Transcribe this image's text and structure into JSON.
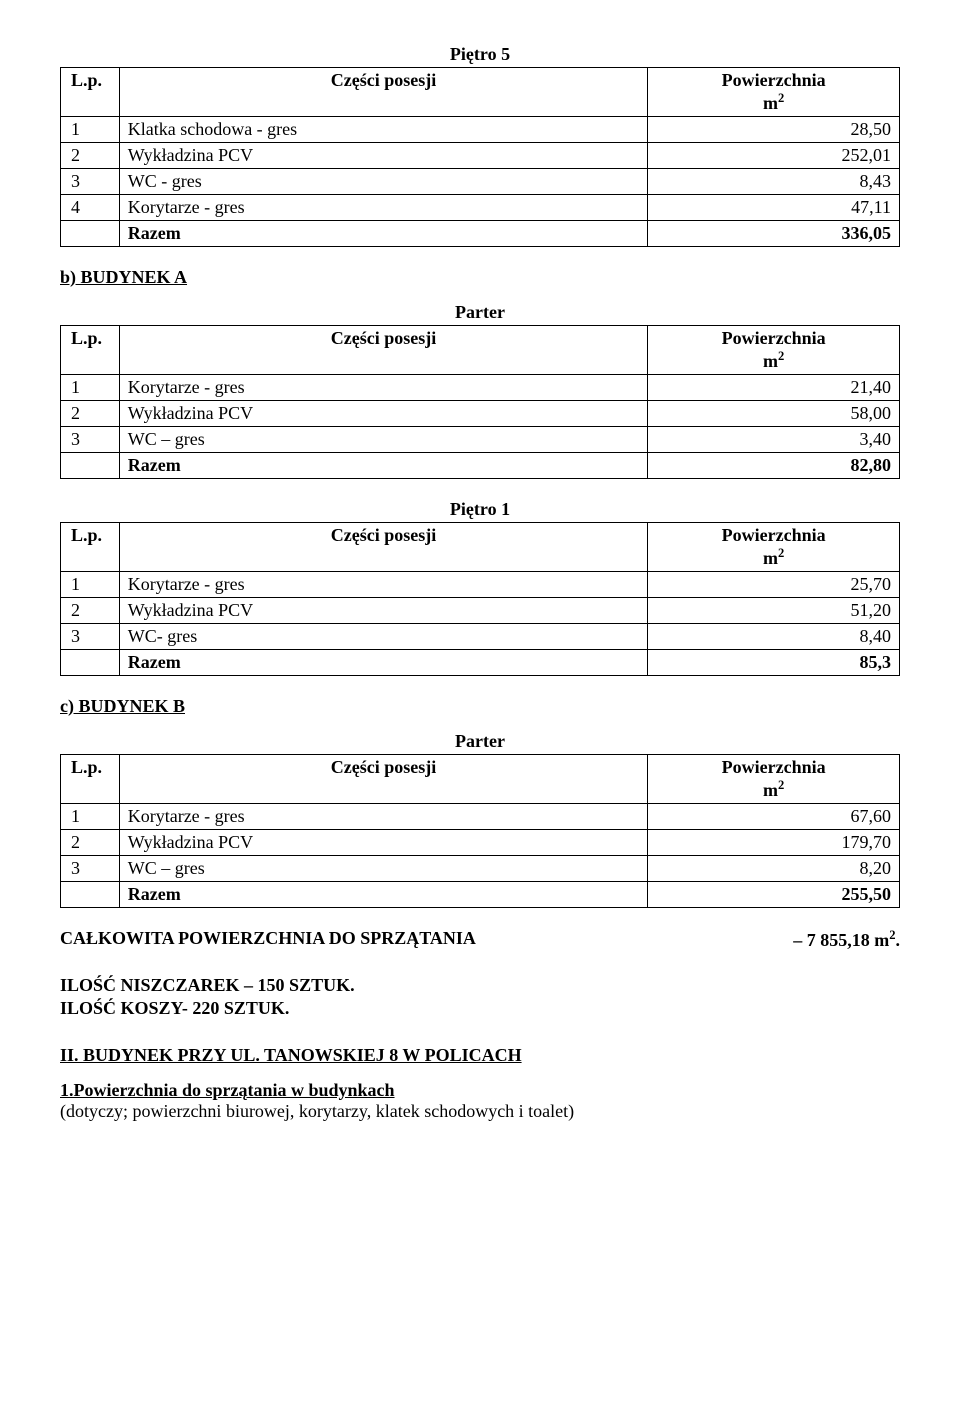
{
  "table1": {
    "title": "Piętro 5",
    "hdr_lp": "L.p.",
    "hdr_name": "Części posesji",
    "hdr_val_line1": "Powierzchnia",
    "hdr_val_line2": "m",
    "hdr_val_sup": "2",
    "rows": [
      {
        "n": "1",
        "name": "Klatka schodowa - gres",
        "val": "28,50"
      },
      {
        "n": "2",
        "name": "Wykładzina PCV",
        "val": "252,01"
      },
      {
        "n": "3",
        "name": "WC - gres",
        "val": "8,43"
      },
      {
        "n": "4",
        "name": "Korytarze - gres",
        "val": "47,11"
      }
    ],
    "razem_label": "Razem",
    "razem_val": "336,05"
  },
  "heading_a": "b) BUDYNEK A",
  "table2": {
    "title": "Parter",
    "hdr_lp": "L.p.",
    "hdr_name": "Części posesji",
    "hdr_val_line1": "Powierzchnia",
    "hdr_val_line2": "m",
    "hdr_val_sup": "2",
    "rows": [
      {
        "n": "1",
        "name": "Korytarze - gres",
        "val": "21,40"
      },
      {
        "n": "2",
        "name": "Wykładzina PCV",
        "val": "58,00"
      },
      {
        "n": "3",
        "name": "WC – gres",
        "val": "3,40"
      }
    ],
    "razem_label": "Razem",
    "razem_val": "82,80"
  },
  "table3": {
    "title": "Piętro 1",
    "hdr_lp": "L.p.",
    "hdr_name": "Części posesji",
    "hdr_val_line1": "Powierzchnia",
    "hdr_val_line2": "m",
    "hdr_val_sup": "2",
    "rows": [
      {
        "n": "1",
        "name": "Korytarze - gres",
        "val": "25,70"
      },
      {
        "n": "2",
        "name": "Wykładzina PCV",
        "val": "51,20"
      },
      {
        "n": "3",
        "name": "WC- gres",
        "val": "8,40"
      }
    ],
    "razem_label": "Razem",
    "razem_val": "85,3"
  },
  "heading_c": "c) BUDYNEK B",
  "table4": {
    "title": "Parter",
    "hdr_lp": "L.p.",
    "hdr_name": "Części posesji",
    "hdr_val_line1": "Powierzchnia",
    "hdr_val_line2": "m",
    "hdr_val_sup": "2",
    "rows": [
      {
        "n": "1",
        "name": "Korytarze - gres",
        "val": "67,60"
      },
      {
        "n": "2",
        "name": "Wykładzina PCV",
        "val": "179,70"
      },
      {
        "n": "3",
        "name": "WC – gres",
        "val": "8,20"
      }
    ],
    "razem_label": "Razem",
    "razem_val": "255,50"
  },
  "total_label": "CAŁKOWITA POWIERZCHNIA DO SPRZĄTANIA",
  "total_val_prefix": "– 7 855,18 m",
  "total_val_sup": "2",
  "total_val_suffix": ".",
  "line_nisz": "ILOŚĆ NISZCZAREK – 150 SZTUK.",
  "line_kosz": "ILOŚĆ KOSZY- 220 SZTUK.",
  "line_building": "II. BUDYNEK PRZY UL. TANOWSKIEJ 8 W POLICACH",
  "para_title": "1.Powierzchnia do sprzątania w budynkach",
  "para_sub": "(dotyczy; powierzchni biurowej, korytarzy, klatek schodowych i toalet)"
}
